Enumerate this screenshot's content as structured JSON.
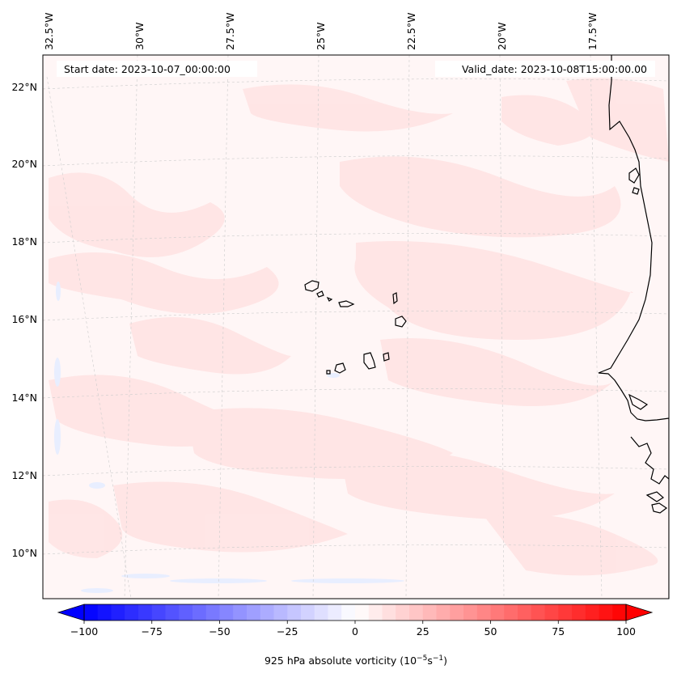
{
  "map": {
    "start_date_label": "Start date: 2023-10-07_00:00:00",
    "valid_date_label": "Valid_date: 2023-10-08T15:00:00.00",
    "lon_labels": [
      "32.5°W",
      "30°W",
      "27.5°W",
      "25°W",
      "22.5°W",
      "20°W",
      "17.5°W"
    ],
    "lat_labels": [
      "22°N",
      "20°N",
      "18°N",
      "16°N",
      "14°N",
      "12°N",
      "10°N"
    ],
    "field_colors": {
      "background": "#fff6f6",
      "light_red": "#ffe6e6",
      "light_blue": "#ecf0ff",
      "coastline": "#000000"
    }
  },
  "colorbar": {
    "label_prefix": "925 hPa absolute vorticity (10",
    "label_exp1": "−5",
    "label_mid": "s",
    "label_exp2": "−1",
    "label_suffix": ")",
    "ticks": [
      "−100",
      "−75",
      "−50",
      "−25",
      "0",
      "25",
      "50",
      "75",
      "100"
    ],
    "min_color": "#0000ff",
    "mid_color": "#ffffff",
    "max_color": "#ff0000"
  }
}
